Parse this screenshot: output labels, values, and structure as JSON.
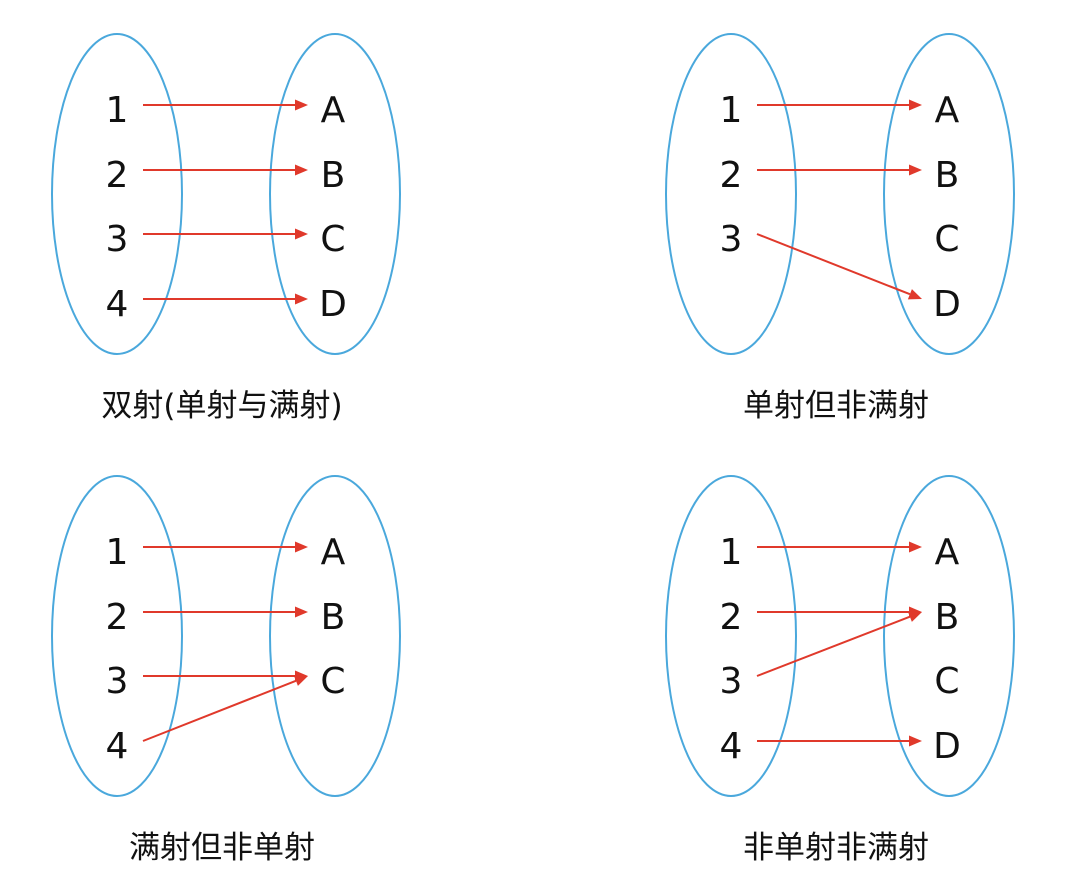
{
  "colors": {
    "oval": "#4aa8dc",
    "arrow": "#e0392b",
    "text": "#111111"
  },
  "panels": [
    {
      "caption": "双射(单射与满射)",
      "domain": [
        "1",
        "2",
        "3",
        "4"
      ],
      "codomain": [
        "A",
        "B",
        "C",
        "D"
      ],
      "mappings": [
        [
          "1",
          "A"
        ],
        [
          "2",
          "B"
        ],
        [
          "3",
          "C"
        ],
        [
          "4",
          "D"
        ]
      ]
    },
    {
      "caption": "单射但非满射",
      "domain": [
        "1",
        "2",
        "3"
      ],
      "codomain": [
        "A",
        "B",
        "C",
        "D"
      ],
      "mappings": [
        [
          "1",
          "A"
        ],
        [
          "2",
          "B"
        ],
        [
          "3",
          "D"
        ]
      ]
    },
    {
      "caption": "满射但非单射",
      "domain": [
        "1",
        "2",
        "3",
        "4"
      ],
      "codomain": [
        "A",
        "B",
        "C"
      ],
      "mappings": [
        [
          "1",
          "A"
        ],
        [
          "2",
          "B"
        ],
        [
          "3",
          "C"
        ],
        [
          "4",
          "C"
        ]
      ]
    },
    {
      "caption": "非单射非满射",
      "domain": [
        "1",
        "2",
        "3",
        "4"
      ],
      "codomain": [
        "A",
        "B",
        "C",
        "D"
      ],
      "mappings": [
        [
          "1",
          "A"
        ],
        [
          "2",
          "B"
        ],
        [
          "3",
          "B"
        ],
        [
          "4",
          "D"
        ]
      ]
    }
  ]
}
